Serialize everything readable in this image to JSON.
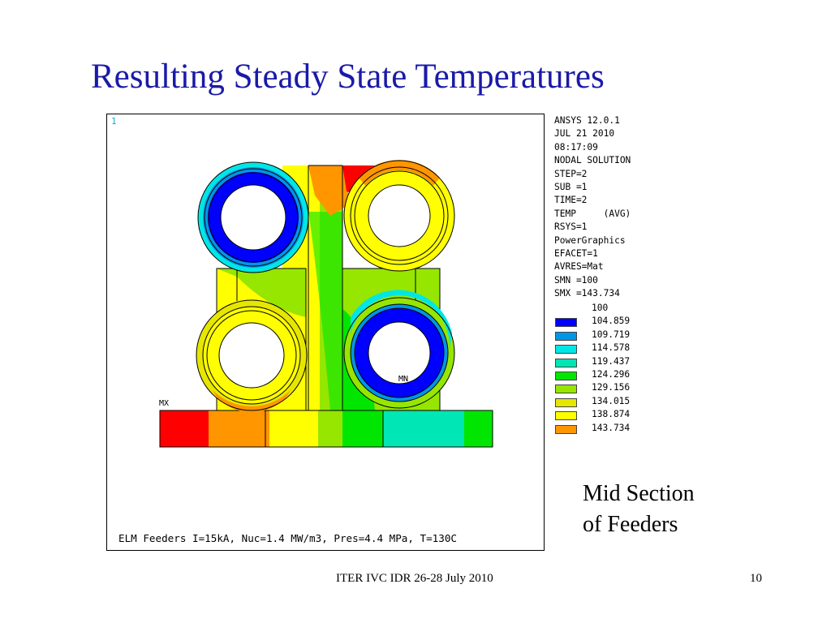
{
  "slide": {
    "title": "Resulting Steady State Temperatures",
    "side_caption_line1": "Mid Section",
    "side_caption_line2": "of Feeders",
    "footer": "ITER IVC IDR 26-28 July 2010",
    "page_number": "10"
  },
  "plot": {
    "window_number": "1",
    "caption": "ELM Feeders I=15kA, Nuc=1.4 MW/m3, Pres=4.4 MPa, T=130C",
    "min_label": "MN",
    "max_label": "MX",
    "info_lines": [
      "ANSYS 12.0.1",
      "JUL 21 2010",
      "08:17:09",
      "NODAL SOLUTION",
      "STEP=2",
      "SUB =1",
      "TIME=2",
      "TEMP     (AVG)",
      "RSYS=1",
      "PowerGraphics",
      "EFACET=1",
      "AVRES=Mat",
      "SMN =100",
      "SMX =143.734"
    ],
    "legend": [
      {
        "value": "100",
        "color": "#0000ff"
      },
      {
        "value": "104.859",
        "color": "#0096e6"
      },
      {
        "value": "109.719",
        "color": "#00e6e6"
      },
      {
        "value": "114.578",
        "color": "#00e6b4"
      },
      {
        "value": "119.437",
        "color": "#00e600"
      },
      {
        "value": "124.296",
        "color": "#96e600"
      },
      {
        "value": "129.156",
        "color": "#e6e600"
      },
      {
        "value": "134.015",
        "color": "#ffff00"
      },
      {
        "value": "138.874",
        "color": "#ff9600"
      },
      {
        "value": "143.734",
        "color": "#ff0000"
      }
    ]
  }
}
